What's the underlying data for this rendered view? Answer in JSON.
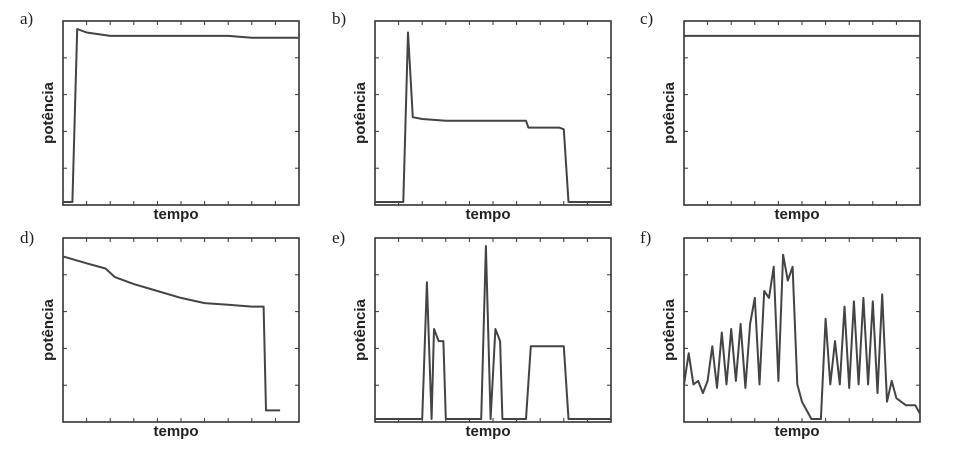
{
  "chart_data": [
    {
      "type": "line",
      "label": "a)",
      "xlabel": "tempo",
      "ylabel": "potência",
      "xlim": [
        0,
        100
      ],
      "ylim": [
        0,
        100
      ],
      "x": [
        0,
        3,
        4,
        5,
        6,
        10,
        20,
        30,
        40,
        50,
        60,
        70,
        80,
        90,
        100
      ],
      "values": [
        0,
        0,
        0,
        50,
        100,
        98,
        96,
        96,
        96,
        96,
        96,
        96,
        95,
        95,
        95
      ]
    },
    {
      "type": "line",
      "label": "b)",
      "xlabel": "tempo",
      "ylabel": "potência",
      "xlim": [
        0,
        100
      ],
      "ylim": [
        0,
        100
      ],
      "x": [
        0,
        10,
        12,
        14,
        16,
        20,
        30,
        40,
        50,
        60,
        64,
        65,
        70,
        78,
        80,
        82,
        85,
        90,
        100
      ],
      "values": [
        0,
        0,
        0,
        98,
        49,
        48,
        47,
        47,
        47,
        47,
        47,
        43,
        43,
        43,
        42,
        0,
        0,
        0,
        0
      ]
    },
    {
      "type": "line",
      "label": "c)",
      "xlabel": "tempo",
      "ylabel": "potência",
      "xlim": [
        0,
        100
      ],
      "ylim": [
        0,
        100
      ],
      "x": [
        0,
        10,
        20,
        30,
        40,
        50,
        60,
        70,
        80,
        90,
        100
      ],
      "values": [
        96,
        96,
        96,
        96,
        96,
        96,
        96,
        96,
        96,
        96,
        96
      ]
    },
    {
      "type": "line",
      "label": "d)",
      "xlabel": "tempo",
      "ylabel": "potência",
      "xlim": [
        0,
        100
      ],
      "ylim": [
        0,
        100
      ],
      "x": [
        0,
        10,
        18,
        22,
        30,
        40,
        50,
        60,
        70,
        80,
        85,
        86,
        87,
        92
      ],
      "values": [
        94,
        90,
        87,
        82,
        78,
        74,
        70,
        67,
        66,
        65,
        65,
        5,
        5,
        5
      ]
    },
    {
      "type": "line",
      "label": "e)",
      "xlabel": "tempo",
      "ylabel": "potência",
      "xlim": [
        0,
        100
      ],
      "ylim": [
        0,
        100
      ],
      "x": [
        0,
        18,
        20,
        22,
        24,
        25,
        27,
        29,
        30,
        31,
        33,
        45,
        47,
        49,
        51,
        53,
        54,
        56,
        57,
        64,
        66,
        80,
        82,
        100
      ],
      "values": [
        0,
        0,
        0,
        79,
        0,
        52,
        45,
        45,
        0,
        0,
        0,
        0,
        100,
        0,
        52,
        45,
        0,
        0,
        0,
        0,
        42,
        42,
        0,
        0
      ],
      "xs": []
    },
    {
      "type": "line",
      "label": "f)",
      "xlabel": "tempo",
      "ylabel": "potência",
      "xlim": [
        0,
        100
      ],
      "ylim": [
        0,
        100
      ],
      "x": [
        0,
        2,
        4,
        6,
        8,
        10,
        12,
        14,
        16,
        18,
        20,
        22,
        24,
        26,
        28,
        30,
        32,
        34,
        36,
        38,
        40,
        42,
        44,
        46,
        48,
        50,
        52,
        54,
        56,
        58,
        60,
        62,
        64,
        66,
        68,
        70,
        72,
        74,
        76,
        78,
        80,
        82,
        84,
        86,
        88,
        90,
        92,
        94,
        96,
        98,
        100
      ],
      "values": [
        20,
        38,
        20,
        22,
        15,
        22,
        42,
        18,
        50,
        20,
        52,
        22,
        55,
        18,
        55,
        70,
        20,
        74,
        70,
        88,
        22,
        95,
        80,
        88,
        20,
        10,
        5,
        0,
        0,
        0,
        58,
        20,
        45,
        20,
        65,
        18,
        68,
        20,
        70,
        20,
        68,
        15,
        72,
        10,
        22,
        12,
        10,
        8,
        8,
        8,
        3
      ]
    }
  ]
}
